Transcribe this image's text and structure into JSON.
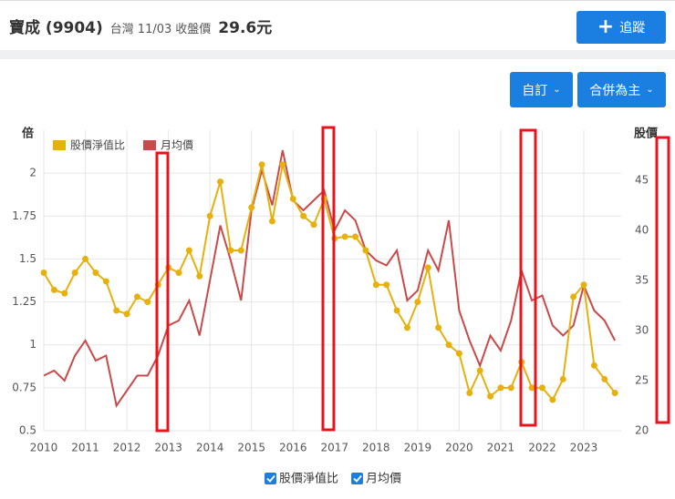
{
  "header": {
    "title": "寶成 (9904)",
    "market": "台灣",
    "date": "11/03",
    "price_label": "收盤價",
    "price": "29.6元",
    "follow_button": "追蹤",
    "custom_button": "自訂",
    "merge_button": "合併為主"
  },
  "chart_data": {
    "type": "line",
    "y_label": "倍",
    "y2_label": "股價",
    "x": [
      2010,
      2010.25,
      2010.5,
      2010.75,
      2011,
      2011.25,
      2011.5,
      2011.75,
      2012,
      2012.25,
      2012.5,
      2012.75,
      2013,
      2013.25,
      2013.5,
      2013.75,
      2014,
      2014.25,
      2014.5,
      2014.75,
      2015,
      2015.25,
      2015.5,
      2015.75,
      2016,
      2016.25,
      2016.5,
      2016.75,
      2017,
      2017.25,
      2017.5,
      2017.75,
      2018,
      2018.25,
      2018.5,
      2018.75,
      2019,
      2019.25,
      2019.5,
      2019.75,
      2020,
      2020.25,
      2020.5,
      2020.75,
      2021,
      2021.25,
      2021.5,
      2021.75,
      2022,
      2022.25,
      2022.5,
      2022.75,
      2023,
      2023.25,
      2023.5,
      2023.75
    ],
    "series": [
      {
        "name": "股價淨值比",
        "color": "#e6b00e",
        "markers": true,
        "values": [
          1.42,
          1.32,
          1.3,
          1.42,
          1.5,
          1.42,
          1.37,
          1.2,
          1.18,
          1.28,
          1.25,
          1.35,
          1.45,
          1.42,
          1.55,
          1.4,
          1.75,
          1.95,
          1.55,
          1.55,
          1.8,
          2.05,
          1.72,
          2.05,
          1.85,
          1.75,
          1.7,
          1.85,
          1.62,
          1.63,
          1.63,
          1.55,
          1.35,
          1.35,
          1.2,
          1.1,
          1.25,
          1.45,
          1.1,
          1.0,
          0.95,
          0.72,
          0.85,
          0.7,
          0.75,
          0.75,
          0.9,
          0.75,
          0.75,
          0.68,
          0.8,
          1.28,
          1.35,
          0.88,
          0.8,
          0.72
        ]
      },
      {
        "name": "月均價",
        "color": "#c94a4a",
        "axis": "y2",
        "values": [
          25.5,
          26,
          25,
          27.5,
          29,
          27,
          27.5,
          22.5,
          24,
          25.5,
          25.5,
          27.5,
          30.5,
          31,
          33,
          29.5,
          35,
          40.5,
          37,
          33,
          42,
          46,
          42.5,
          48,
          43,
          42,
          43,
          44,
          40,
          42,
          41,
          38,
          37,
          36.5,
          38,
          33,
          34,
          38,
          36,
          41,
          32,
          29,
          26.5,
          29.5,
          28,
          31,
          36,
          33,
          33.5,
          30.5,
          29.5,
          30.5,
          34.5,
          32,
          31,
          29
        ]
      }
    ],
    "xlim": [
      2010,
      2023.9
    ],
    "xticks": [
      2010,
      2011,
      2012,
      2013,
      2014,
      2015,
      2016,
      2017,
      2018,
      2019,
      2020,
      2021,
      2022,
      2023
    ],
    "ylim": [
      0.5,
      2.25
    ],
    "yticks": [
      0.5,
      0.75,
      1,
      1.25,
      1.5,
      1.75,
      2
    ],
    "y2lim": [
      20,
      50
    ],
    "y2ticks": [
      20,
      25,
      30,
      35,
      40,
      45
    ],
    "grid": true
  }
}
